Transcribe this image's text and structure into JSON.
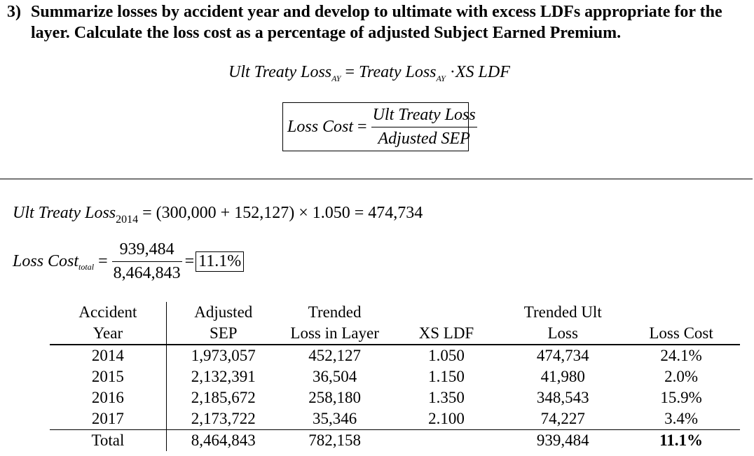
{
  "question": {
    "number": "3)",
    "line1": "Summarize losses by accident year and develop to ultimate with excess LDFs appropriate for the",
    "line2": "layer. Calculate the loss cost as a percentage of adjusted Subject Earned Premium."
  },
  "formula_ult": {
    "lhs": "Ult Treaty Loss",
    "lhs_sub": "AY",
    "eq": "=",
    "rhs": "Treaty Loss",
    "rhs_sub": "AY",
    "dot": "·",
    "rhs2": "XS LDF"
  },
  "formula_loss_cost": {
    "lhs": "Loss Cost",
    "eq": "=",
    "numerator": "Ult Treaty Loss",
    "denominator": "Adjusted SEP"
  },
  "calc_ult": {
    "lhs": "Ult Treaty Loss",
    "lhs_sub": "2014",
    "expression": "= (300,000 + 152,127) × 1.050 = 474,734"
  },
  "calc_loss_cost": {
    "lhs": "Loss Cost",
    "lhs_sub": "total",
    "eq": "=",
    "numerator": "939,484",
    "denominator": "8,464,843",
    "eq2": "=",
    "result": "11.1%"
  },
  "table": {
    "headers_row1": [
      "Accident",
      "Adjusted",
      "Trended",
      "",
      "Trended Ult",
      ""
    ],
    "headers_row2": [
      "Year",
      "SEP",
      "Loss in Layer",
      "XS LDF",
      "Loss",
      "Loss Cost"
    ],
    "rows": [
      [
        "2014",
        "1,973,057",
        "452,127",
        "1.050",
        "474,734",
        "24.1%"
      ],
      [
        "2015",
        "2,132,391",
        "36,504",
        "1.150",
        "41,980",
        "2.0%"
      ],
      [
        "2016",
        "2,185,672",
        "258,180",
        "1.350",
        "348,543",
        "15.9%"
      ],
      [
        "2017",
        "2,173,722",
        "35,346",
        "2.100",
        "74,227",
        "3.4%"
      ]
    ],
    "total": [
      "Total",
      "8,464,843",
      "782,158",
      "",
      "939,484",
      "11.1%"
    ]
  }
}
